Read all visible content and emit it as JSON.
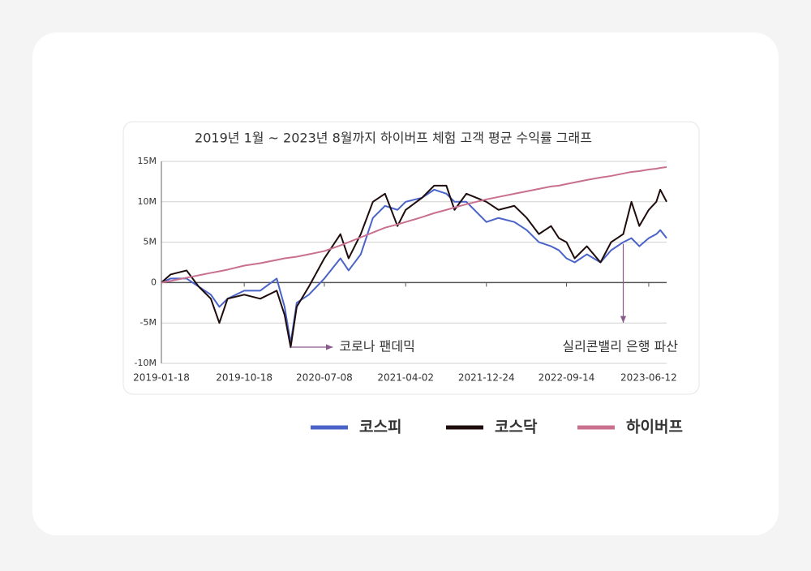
{
  "chart_data": {
    "type": "line",
    "title": "2019년 1월 ~ 2023년 8월까지 하이버프 체험 고객 평균 수익률 그래프",
    "x": [
      "2019-01-18",
      "2019-02-17",
      "2019-04-11",
      "2019-05-21",
      "2019-06-30",
      "2019-07-28",
      "2019-08-24",
      "2019-10-18",
      "2019-12-10",
      "2020-02-02",
      "2020-02-28",
      "2020-03-19",
      "2020-04-08",
      "2020-05-18",
      "2020-07-08",
      "2020-08-30",
      "2020-09-26",
      "2020-11-05",
      "2020-12-15",
      "2021-01-24",
      "2021-03-06",
      "2021-04-02",
      "2021-05-26",
      "2021-07-05",
      "2021-08-14",
      "2021-09-10",
      "2021-10-19",
      "2021-12-24",
      "2022-02-02",
      "2022-03-26",
      "2022-05-06",
      "2022-06-15",
      "2022-07-25",
      "2022-08-20",
      "2022-09-14",
      "2022-10-11",
      "2022-11-20",
      "2023-01-04",
      "2023-02-08",
      "2023-03-20",
      "2023-04-16",
      "2023-05-12",
      "2023-06-12",
      "2023-07-07",
      "2023-07-20",
      "2023-08-10"
    ],
    "series": [
      {
        "name": "코스피",
        "color": "#4a63c9",
        "values": [
          0,
          500000,
          500000,
          -500000,
          -1500000,
          -3000000,
          -2000000,
          -1000000,
          -1000000,
          500000,
          -3000000,
          -7500000,
          -2500000,
          -1500000,
          500000,
          3000000,
          1500000,
          3500000,
          8000000,
          9500000,
          9000000,
          10000000,
          10500000,
          11500000,
          11000000,
          10000000,
          10000000,
          7500000,
          8000000,
          7500000,
          6500000,
          5000000,
          4500000,
          4000000,
          3000000,
          2500000,
          3500000,
          2500000,
          4000000,
          5000000,
          5500000,
          4500000,
          5500000,
          6000000,
          6500000,
          5500000
        ]
      },
      {
        "name": "코스닥",
        "color": "#1f0c0c",
        "values": [
          0,
          1000000,
          1500000,
          -500000,
          -2000000,
          -5000000,
          -2000000,
          -1500000,
          -2000000,
          -1000000,
          -4000000,
          -8000000,
          -3000000,
          -500000,
          3000000,
          6000000,
          3000000,
          6000000,
          10000000,
          11000000,
          7000000,
          9000000,
          10500000,
          12000000,
          12000000,
          9000000,
          11000000,
          10000000,
          9000000,
          9500000,
          8000000,
          6000000,
          7000000,
          5500000,
          5000000,
          3000000,
          4500000,
          2500000,
          5000000,
          6000000,
          10000000,
          7000000,
          9000000,
          10000000,
          11500000,
          10000000
        ]
      },
      {
        "name": "하이버프",
        "color": "#c9708f",
        "values": [
          0,
          200000,
          600000,
          900000,
          1200000,
          1400000,
          1600000,
          2100000,
          2400000,
          2800000,
          3000000,
          3100000,
          3200000,
          3500000,
          3900000,
          4600000,
          5000000,
          5600000,
          6200000,
          6800000,
          7200000,
          7500000,
          8100000,
          8600000,
          9000000,
          9300000,
          9700000,
          10300000,
          10600000,
          11000000,
          11300000,
          11600000,
          11900000,
          12000000,
          12200000,
          12400000,
          12700000,
          13000000,
          13200000,
          13500000,
          13700000,
          13800000,
          14000000,
          14100000,
          14200000,
          14300000
        ]
      }
    ],
    "xlim": [
      "2019-01-18",
      "2023-08-10"
    ],
    "xticks": [
      "2019-01-18",
      "2019-10-18",
      "2020-07-08",
      "2021-04-02",
      "2021-12-24",
      "2022-09-14",
      "2023-06-12"
    ],
    "ylim": [
      -10000000,
      15000000
    ],
    "yticks": [
      {
        "value": -10000000,
        "label": "-10M"
      },
      {
        "value": -5000000,
        "label": "-5M"
      },
      0,
      {
        "value": 5000000,
        "label": "5M"
      },
      {
        "value": 10000000,
        "label": "10M"
      },
      {
        "value": 15000000,
        "label": "15M"
      }
    ],
    "grid": true,
    "annotations": [
      {
        "text": "코로나 팬데믹",
        "x": "2020-03-19",
        "y": -8000000
      },
      {
        "text": "실리콘밸리 은행 파산",
        "x": "2023-03-20",
        "y": 4000000
      }
    ]
  }
}
